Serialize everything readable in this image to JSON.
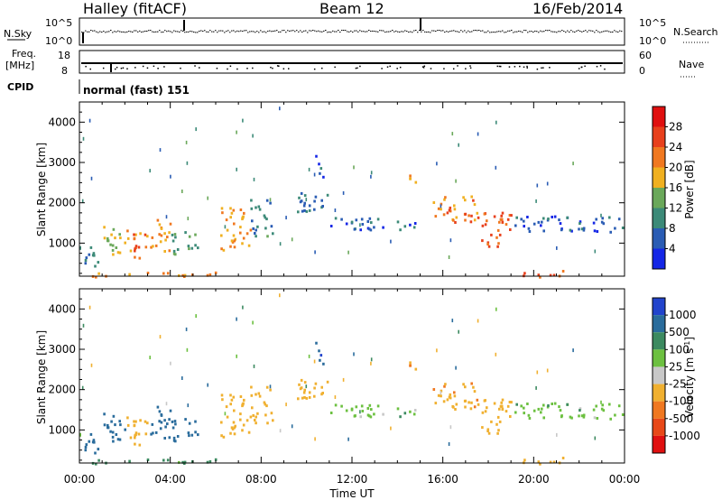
{
  "header": {
    "station": "Halley (fitACF)",
    "beam": "Beam 12",
    "date": "16/Feb/2014"
  },
  "strips": {
    "nsky_label": "N.Sky",
    "nsearch_label": "N.Search",
    "nsky_ticks": [
      "10^5",
      "10^0"
    ],
    "nsearch_ticks": [
      "10^5",
      "10^0"
    ],
    "freq_label_1": "Freq.",
    "freq_label_2": "[MHz]",
    "freq_ticks": [
      "18",
      "8"
    ],
    "nave_label": "Nave",
    "nave_ticks": [
      "60",
      "0"
    ],
    "cpid_label": "CPID",
    "cpid_value": "normal (fast) 151"
  },
  "chart_data": [
    {
      "type": "heatmap",
      "panel": "power",
      "ylabel": "Slant Range [km]",
      "xlabel": "",
      "ylim": [
        180,
        4500
      ],
      "yticks": [
        1000,
        2000,
        3000,
        4000
      ],
      "xlim_hours": [
        0,
        24
      ],
      "colorbar_label": "Power [dB]",
      "colorbar_ticks": [
        4,
        8,
        12,
        16,
        20,
        24,
        28
      ],
      "colorbar_range": [
        0,
        32
      ],
      "colors": [
        "#1426e6",
        "#2a5cb4",
        "#3c8a78",
        "#6aa85a",
        "#f0b020",
        "#f07820",
        "#e8401c",
        "#e01010"
      ],
      "regions": [
        {
          "t": [
            0.0,
            0.8
          ],
          "r": [
            450,
            1000
          ],
          "v": 8
        },
        {
          "t": [
            1.0,
            2.0
          ],
          "r": [
            700,
            1500
          ],
          "v": 16
        },
        {
          "t": [
            2.0,
            3.0
          ],
          "r": [
            600,
            1400
          ],
          "v": 22
        },
        {
          "t": [
            3.0,
            4.0
          ],
          "r": [
            800,
            1600
          ],
          "v": 20
        },
        {
          "t": [
            4.0,
            5.2
          ],
          "r": [
            700,
            1300
          ],
          "v": 12
        },
        {
          "t": [
            6.2,
            7.5
          ],
          "r": [
            800,
            1900
          ],
          "v": 20
        },
        {
          "t": [
            7.5,
            8.5
          ],
          "r": [
            1200,
            2100
          ],
          "v": 10
        },
        {
          "t": [
            9.5,
            11.0
          ],
          "r": [
            1700,
            2300
          ],
          "v": 8
        },
        {
          "t": [
            10.3,
            10.7
          ],
          "r": [
            2600,
            3200
          ],
          "v": 6
        },
        {
          "t": [
            11.0,
            15.0
          ],
          "r": [
            1350,
            1650
          ],
          "v": 6
        },
        {
          "t": [
            14.5,
            15.0
          ],
          "r": [
            2400,
            2800
          ],
          "v": 20
        },
        {
          "t": [
            15.5,
            17.5
          ],
          "r": [
            1500,
            2200
          ],
          "v": 22
        },
        {
          "t": [
            17.5,
            19.0
          ],
          "r": [
            900,
            1800
          ],
          "v": 24
        },
        {
          "t": [
            19.0,
            24.0
          ],
          "r": [
            1300,
            1700
          ],
          "v": 6
        },
        {
          "t": [
            19.5,
            21.5
          ],
          "r": [
            180,
            350
          ],
          "v": 26
        },
        {
          "t": [
            0.0,
            6.0
          ],
          "r": [
            180,
            300
          ],
          "v": 20
        }
      ]
    },
    {
      "type": "heatmap",
      "panel": "velocity",
      "ylabel": "Slant Range [km]",
      "xlabel": "Time UT",
      "ylim": [
        180,
        4500
      ],
      "yticks": [
        1000,
        2000,
        3000,
        4000
      ],
      "xticks": [
        "00:00",
        "04:00",
        "08:00",
        "12:00",
        "16:00",
        "20:00",
        "00:00"
      ],
      "xlim_hours": [
        0,
        24
      ],
      "colorbar_label": "Velocity [m s^-1]",
      "colorbar_ticks": [
        "1000",
        "500",
        "100",
        "25",
        "-25",
        "-100",
        "-500",
        "-1000"
      ],
      "colors": [
        "#2244cc",
        "#2a6c9c",
        "#3c8a60",
        "#6cc040",
        "#c8c8c8",
        "#f0b030",
        "#f07820",
        "#e84818",
        "#e01010"
      ],
      "regions": [
        {
          "t": [
            0.0,
            0.8
          ],
          "r": [
            450,
            1000
          ],
          "v": 300
        },
        {
          "t": [
            1.0,
            2.0
          ],
          "r": [
            700,
            1500
          ],
          "v": 200
        },
        {
          "t": [
            2.0,
            3.0
          ],
          "r": [
            600,
            1400
          ],
          "v": -300
        },
        {
          "t": [
            3.0,
            4.0
          ],
          "r": [
            800,
            1600
          ],
          "v": 150
        },
        {
          "t": [
            4.0,
            5.2
          ],
          "r": [
            700,
            1300
          ],
          "v": 200
        },
        {
          "t": [
            6.2,
            7.5
          ],
          "r": [
            800,
            1900
          ],
          "v": -350
        },
        {
          "t": [
            7.5,
            8.5
          ],
          "r": [
            1200,
            2100
          ],
          "v": -200
        },
        {
          "t": [
            9.5,
            11.0
          ],
          "r": [
            1700,
            2300
          ],
          "v": -200
        },
        {
          "t": [
            10.3,
            10.7
          ],
          "r": [
            2600,
            3200
          ],
          "v": 400
        },
        {
          "t": [
            11.0,
            15.0
          ],
          "r": [
            1350,
            1650
          ],
          "v": 0
        },
        {
          "t": [
            14.5,
            15.0
          ],
          "r": [
            2400,
            2800
          ],
          "v": -400
        },
        {
          "t": [
            15.5,
            17.5
          ],
          "r": [
            1500,
            2200
          ],
          "v": -400
        },
        {
          "t": [
            17.5,
            19.0
          ],
          "r": [
            900,
            1800
          ],
          "v": -350
        },
        {
          "t": [
            19.0,
            24.0
          ],
          "r": [
            1300,
            1700
          ],
          "v": 0
        },
        {
          "t": [
            19.5,
            21.5
          ],
          "r": [
            180,
            350
          ],
          "v": -150
        },
        {
          "t": [
            0.0,
            6.0
          ],
          "r": [
            180,
            300
          ],
          "v": 50
        }
      ]
    }
  ]
}
